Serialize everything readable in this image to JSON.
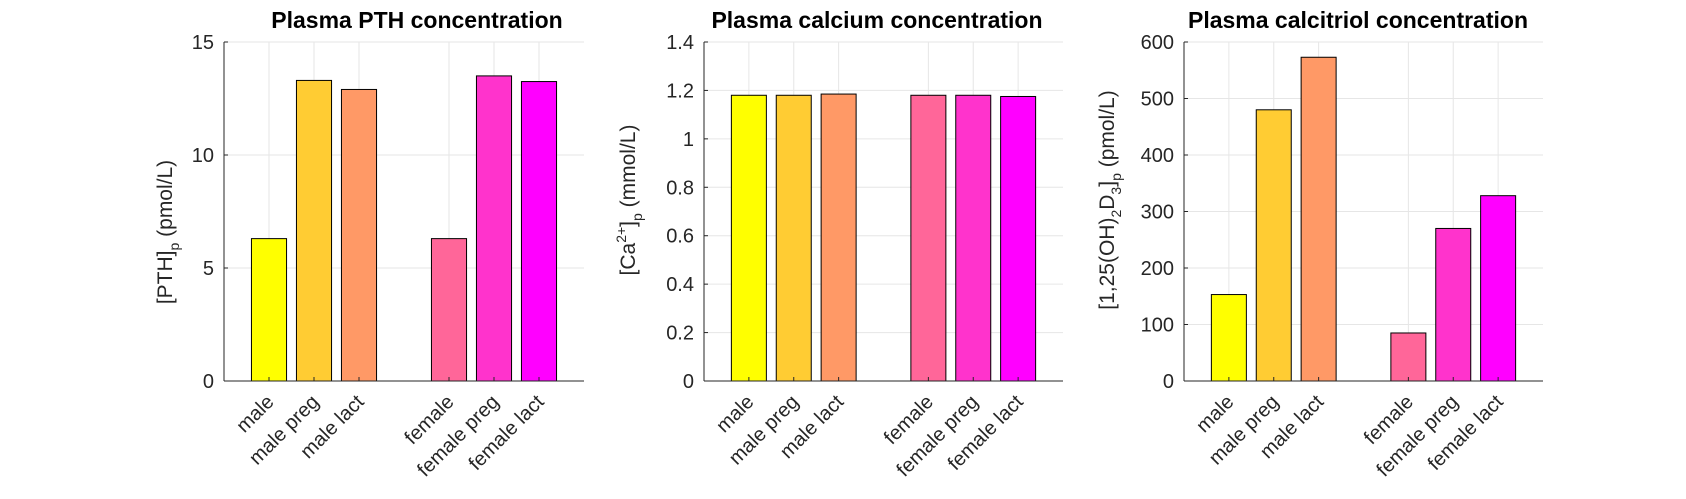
{
  "figure": {
    "colors": {
      "male": "#ffff00",
      "male preg": "#ffcc33",
      "male lact": "#ff9966",
      "female": "#ff6699",
      "female preg": "#ff33cc",
      "female lact": "#ff00ff"
    }
  },
  "chart_data": [
    {
      "type": "bar",
      "title": "Plasma PTH concentration",
      "ylabel": {
        "main": "[PTH]",
        "subscript": "p",
        "unit": " (pmol/L)"
      },
      "categories": [
        "male",
        "male preg",
        "male lact",
        "female",
        "female preg",
        "female lact"
      ],
      "values": [
        6.3,
        13.3,
        12.9,
        6.3,
        13.5,
        13.25
      ],
      "ylim": [
        0,
        15
      ],
      "yticks": [
        "0",
        "5",
        "10",
        "15"
      ],
      "grid": true
    },
    {
      "type": "bar",
      "title": "Plasma calcium concentration",
      "ylabel": {
        "main": "[Ca",
        "superscript": "2+",
        "close": "]",
        "subscript": "p",
        "unit": " (mmol/L)"
      },
      "categories": [
        "male",
        "male preg",
        "male lact",
        "female",
        "female preg",
        "female lact"
      ],
      "values": [
        1.18,
        1.18,
        1.185,
        1.18,
        1.18,
        1.175
      ],
      "ylim": [
        0,
        1.4
      ],
      "yticks": [
        "0",
        "0.2",
        "0.4",
        "0.6",
        "0.8",
        "1",
        "1.2",
        "1.4"
      ],
      "grid": true
    },
    {
      "type": "bar",
      "title": "Plasma calcitriol concentration",
      "ylabel": {
        "main": "[1,25(OH)",
        "sub1": "2",
        "mid": "D",
        "sub2": "3",
        "close": "]",
        "subscript": "p",
        "unit": " (pmol/L)"
      },
      "categories": [
        "male",
        "male preg",
        "male lact",
        "female",
        "female preg",
        "female lact"
      ],
      "values": [
        153,
        480,
        573,
        85,
        270,
        328
      ],
      "ylim": [
        0,
        600
      ],
      "yticks": [
        "0",
        "100",
        "200",
        "300",
        "400",
        "500",
        "600"
      ],
      "grid": true
    }
  ]
}
